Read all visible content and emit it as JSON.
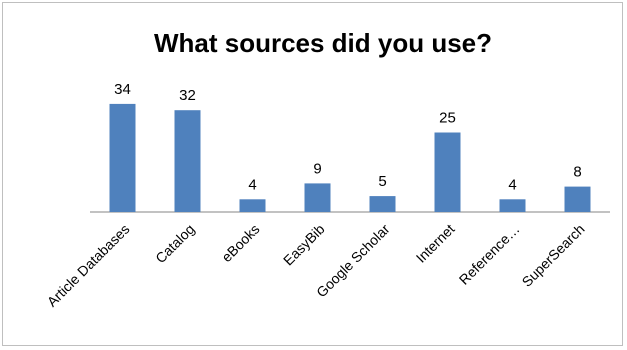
{
  "chart_data": {
    "type": "bar",
    "title": "What sources did you use?",
    "categories": [
      "Article Databases",
      "Catalog",
      "eBooks",
      "EasyBib",
      "Google Scholar",
      "Internet",
      "Reference…",
      "SuperSearch"
    ],
    "values": [
      34,
      32,
      4,
      9,
      5,
      25,
      4,
      8
    ],
    "xlabel": "",
    "ylabel": "",
    "ylim": [
      0,
      35
    ],
    "grid": false,
    "legend": "none",
    "bar_color": "#4f81bd",
    "data_labels": true
  }
}
